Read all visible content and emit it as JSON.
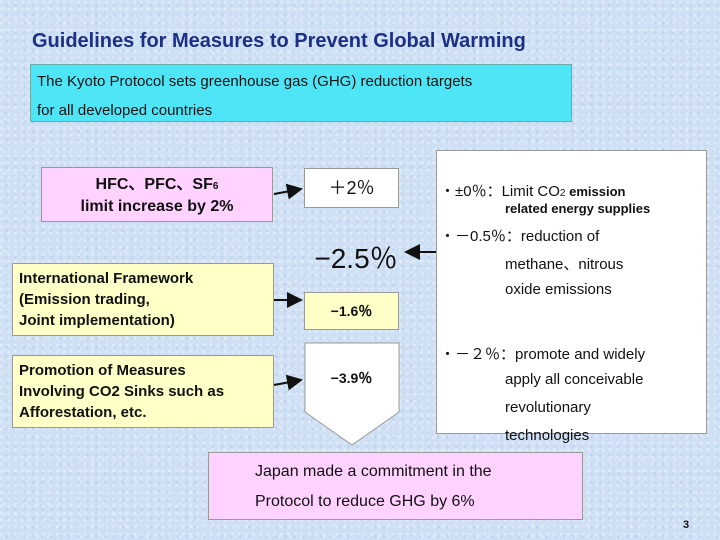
{
  "title": "Guidelines for Measures to Prevent Global Warming",
  "kyoto": {
    "line1": "The Kyoto Protocol sets greenhouse gas (GHG) reduction targets",
    "line2": "for all developed countries"
  },
  "hfc_box": {
    "line1_prefix": "HFC、PFC、SF",
    "line1_sub": "6",
    "line2": "limit increase by 2%"
  },
  "intl_box": {
    "line1": "International Framework",
    "line2": "(Emission trading,",
    "line3": "Joint implementation)"
  },
  "sinks_box": {
    "line1": "Promotion of Measures",
    "line2": "Involving CO2 Sinks such as",
    "line3": "Afforestation, etc."
  },
  "values": {
    "plus2": "＋2％",
    "minus25": "−2.5％",
    "minus16": "−1.6％",
    "minus39": "−3.9％"
  },
  "right": {
    "item1_prefix": "・±0％：Limit CO",
    "item1_sub": "2",
    "item1_suffix": " emission",
    "item1_line2": "related energy supplies",
    "item2_line1": "・－0.5％：reduction of",
    "item2_line2": "methane、nitrous",
    "item2_line3": "oxide emissions",
    "item3_line1": "・－２％：promote and widely",
    "item3_line2": "apply all conceivable",
    "item3_line3": "revolutionary",
    "item3_line4": "technologies"
  },
  "japan": {
    "line1": "Japan made a commitment in the",
    "line2": "Protocol to reduce GHG by 6%"
  },
  "page_number": "3",
  "colors": {
    "title": "#1c2f86",
    "kyoto_bg": "#4ee6f7",
    "pink_bg": "#ffd2ff",
    "yellow_bg": "#ffffc8",
    "background": "#cfe0f4"
  }
}
